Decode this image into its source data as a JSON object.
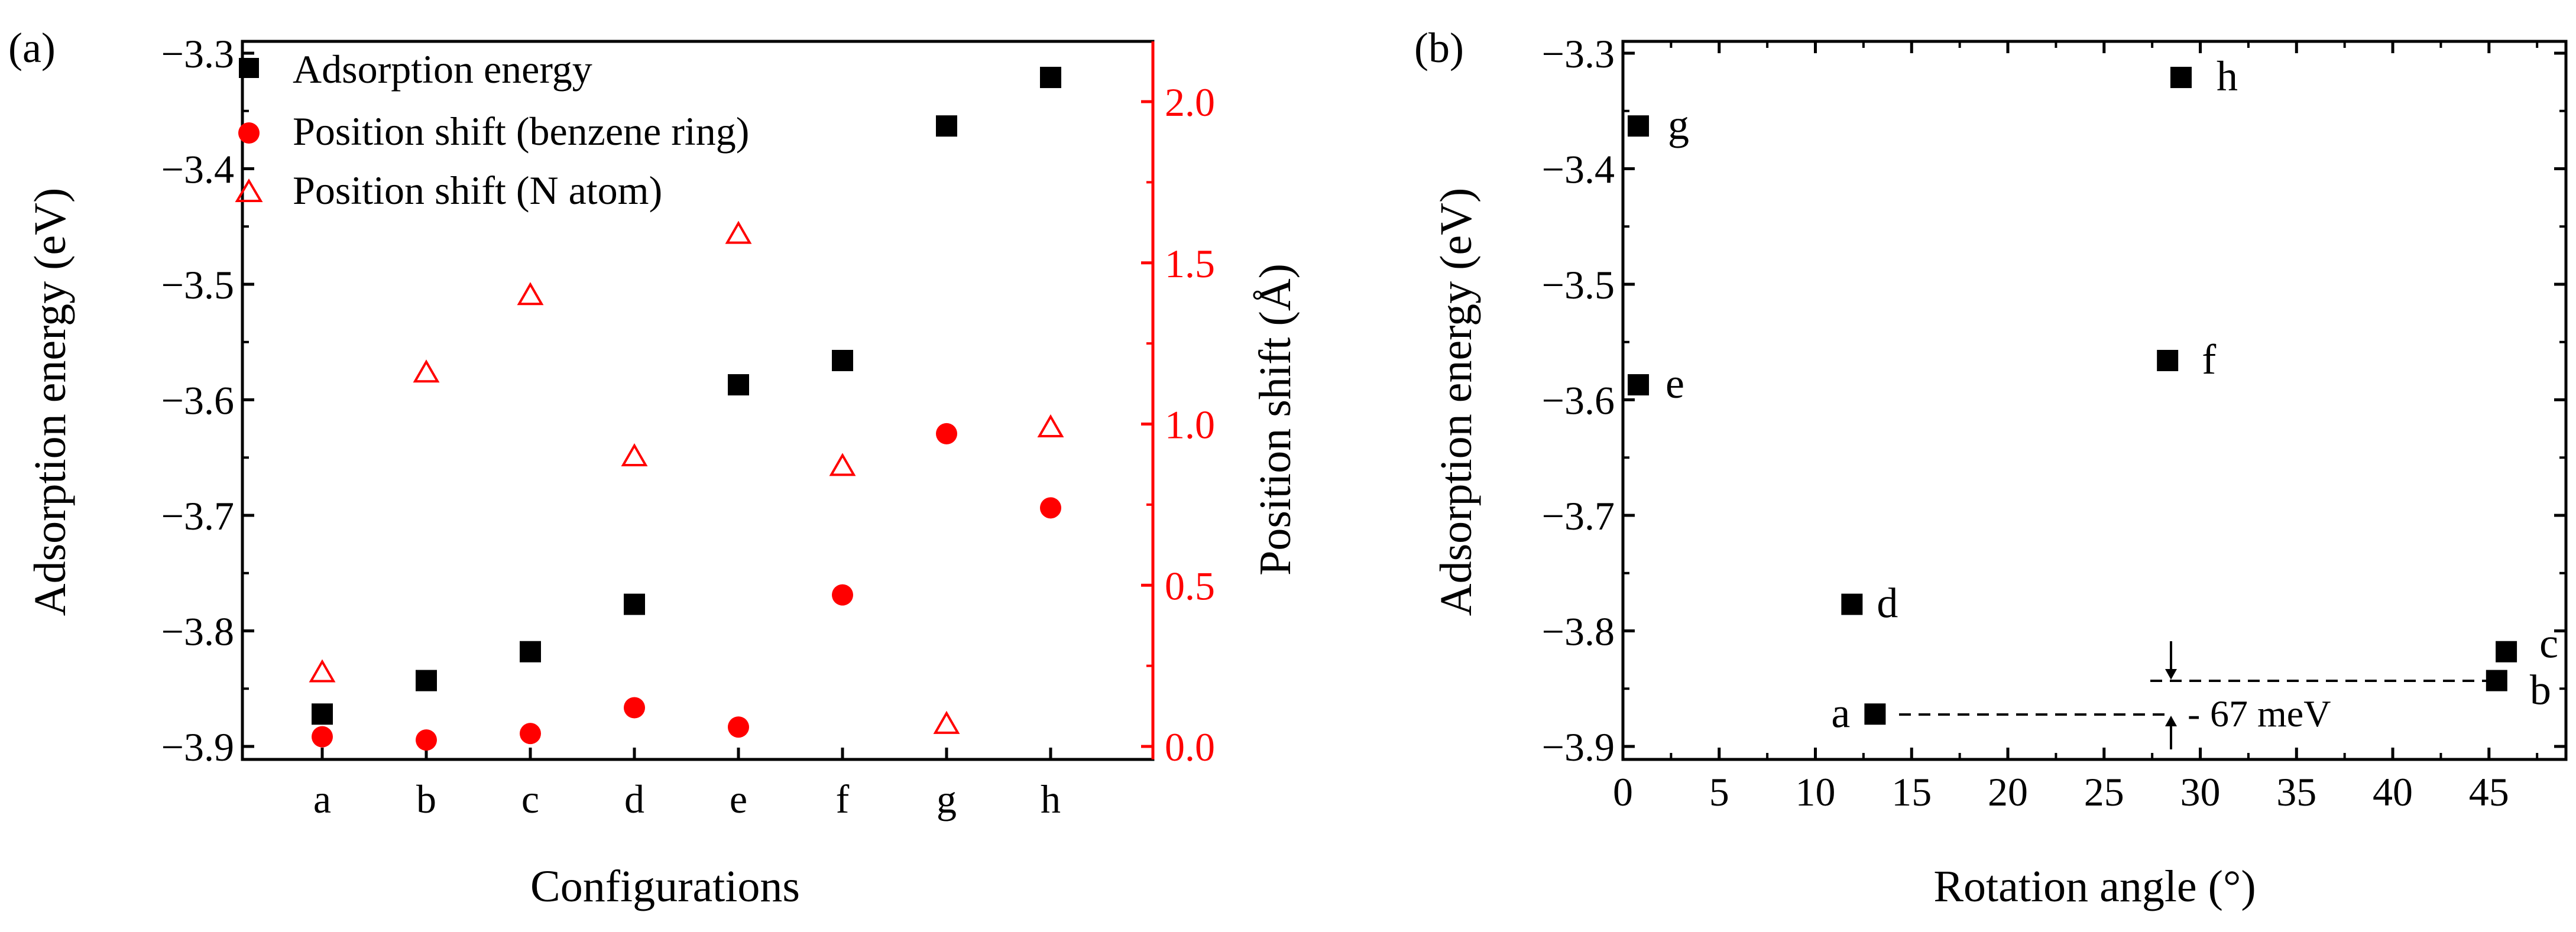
{
  "chart_data": [
    {
      "panel_label": "(a)",
      "type": "scatter",
      "categories": [
        "a",
        "b",
        "c",
        "d",
        "e",
        "f",
        "g",
        "h"
      ],
      "xlabel": "Configurations",
      "ylabel": "Adsorption energy (eV)",
      "ylim": [
        -3.9,
        -3.3
      ],
      "yticks": [
        "−3.9",
        "−3.8",
        "−3.7",
        "−3.6",
        "−3.5",
        "−3.4",
        "−3.3"
      ],
      "y2label": "Position shift (Å)",
      "y2lim": [
        0.0,
        2.2
      ],
      "y2ticks": [
        "0.0",
        "0.5",
        "1.0",
        "1.5",
        "2.0"
      ],
      "legend_position": "top-left",
      "series": [
        {
          "name": "Adsorption energy",
          "axis": "left",
          "marker": "filled-square",
          "color": "#000000",
          "values": [
            -3.872,
            -3.843,
            -3.818,
            -3.777,
            -3.587,
            -3.566,
            -3.363,
            -3.321
          ]
        },
        {
          "name": "Position shift (benzene ring)",
          "axis": "right",
          "marker": "filled-circle",
          "color": "#ff0000",
          "values": [
            0.03,
            0.02,
            0.04,
            0.12,
            0.06,
            0.47,
            0.97,
            0.74
          ]
        },
        {
          "name": "Position shift (N atom)",
          "axis": "right",
          "marker": "open-triangle",
          "color": "#ff0000",
          "values": [
            0.23,
            1.16,
            1.4,
            0.9,
            1.59,
            0.87,
            0.07,
            0.99
          ]
        }
      ]
    },
    {
      "panel_label": "(b)",
      "type": "scatter",
      "xlabel": "Rotation angle (°)",
      "ylabel": "Adsorption energy (eV)",
      "xlim": [
        0,
        49
      ],
      "xticks": [
        "0",
        "5",
        "10",
        "15",
        "20",
        "25",
        "30",
        "35",
        "40",
        "45"
      ],
      "ylim": [
        -3.9,
        -3.3
      ],
      "yticks": [
        "−3.9",
        "−3.8",
        "−3.7",
        "−3.6",
        "−3.5",
        "−3.4",
        "−3.3"
      ],
      "series": [
        {
          "marker": "filled-square",
          "color": "#000000",
          "points": [
            {
              "label": "a",
              "x": 13.1,
              "y": -3.872
            },
            {
              "label": "b",
              "x": 45.4,
              "y": -3.843
            },
            {
              "label": "c",
              "x": 45.9,
              "y": -3.818
            },
            {
              "label": "d",
              "x": 11.9,
              "y": -3.777
            },
            {
              "label": "e",
              "x": 0.8,
              "y": -3.587
            },
            {
              "label": "f",
              "x": 28.3,
              "y": -3.566
            },
            {
              "label": "g",
              "x": 0.8,
              "y": -3.363
            },
            {
              "label": "h",
              "x": 29.0,
              "y": -3.321
            }
          ]
        }
      ],
      "annotation": "67 meV"
    }
  ]
}
